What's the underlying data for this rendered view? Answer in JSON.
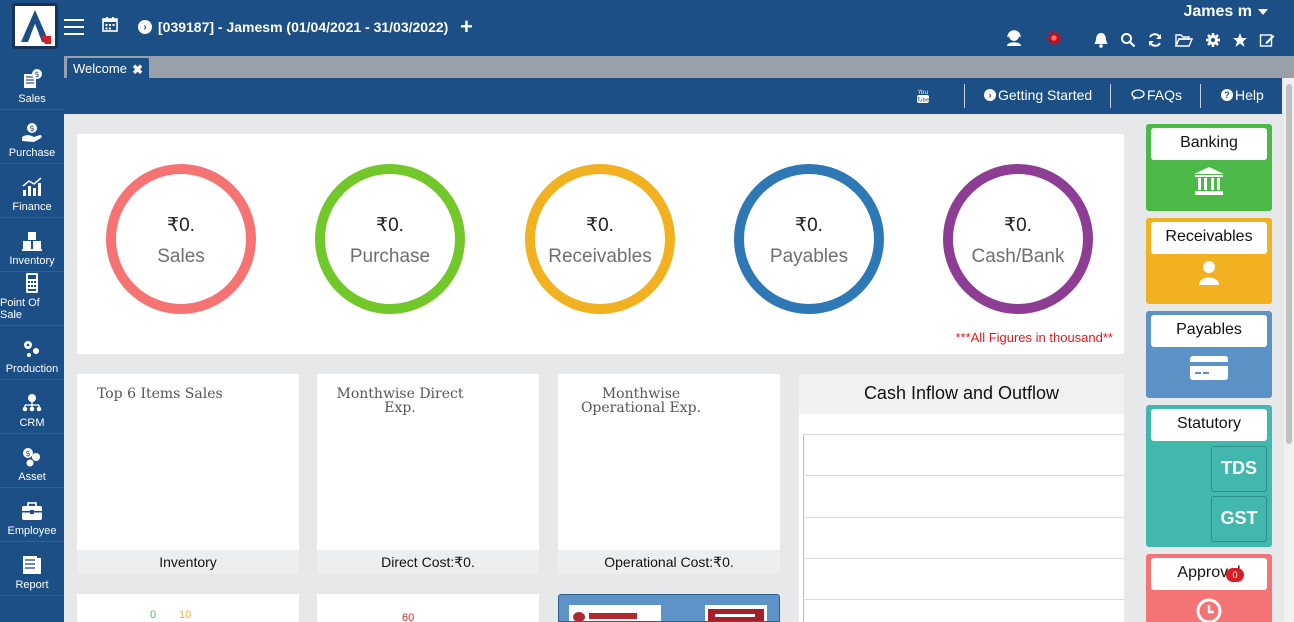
{
  "header": {
    "company": "[039187] - Jamesm (01/04/2021 - 31/03/2022)",
    "username": "James m",
    "icons": [
      "menu-icon",
      "calendar-icon",
      "circle-arrow-icon",
      "plus-icon",
      "support-agent-icon",
      "virus-icon",
      "bell-icon",
      "search-icon",
      "refresh-icon",
      "folder-icon",
      "gear-icon",
      "star-icon",
      "edit-icon"
    ]
  },
  "sidebar": {
    "items": [
      {
        "label": "Sales",
        "icon": "sales-icon"
      },
      {
        "label": "Purchase",
        "icon": "purchase-icon"
      },
      {
        "label": "Finance",
        "icon": "finance-icon"
      },
      {
        "label": "Inventory",
        "icon": "inventory-icon"
      },
      {
        "label": "Point Of Sale",
        "icon": "pos-icon"
      },
      {
        "label": "Production",
        "icon": "production-icon"
      },
      {
        "label": "CRM",
        "icon": "crm-icon"
      },
      {
        "label": "Asset",
        "icon": "asset-icon"
      },
      {
        "label": "Employee",
        "icon": "employee-icon"
      },
      {
        "label": "Report",
        "icon": "report-icon"
      }
    ]
  },
  "tabs": [
    {
      "label": "Welcome",
      "close": "✖"
    }
  ],
  "toolbar": {
    "getting_started": "Getting Started",
    "faqs": "FAQs",
    "help": "Help"
  },
  "summary": {
    "circles": [
      {
        "amount": "₹0.",
        "label": "Sales",
        "color": "#f57473"
      },
      {
        "amount": "₹0.",
        "label": "Purchase",
        "color": "#72c82a"
      },
      {
        "amount": "₹0.",
        "label": "Receivables",
        "color": "#f2b120"
      },
      {
        "amount": "₹0.",
        "label": "Payables",
        "color": "#2f78b6"
      },
      {
        "amount": "₹0.",
        "label": "Cash/Bank",
        "color": "#8e3d95"
      }
    ],
    "note": "***All Figures in thousand**"
  },
  "cards": {
    "top_items": {
      "title": "Top 6 Items Sales",
      "footer": "Inventory"
    },
    "direct_exp": {
      "title_line1": "Monthwise Direct",
      "title_line2": "Exp.",
      "footer": "Direct Cost:₹0."
    },
    "operational_exp": {
      "title_line1": "Monthwise",
      "title_line2": "Operational Exp.",
      "footer": "Operational Cost:₹0."
    },
    "cash_flow": {
      "title": "Cash Inflow and Outflow"
    }
  },
  "partial_row": {
    "gauge1": {
      "v1": "0",
      "v2": "10"
    },
    "gauge2": {
      "v1": "60"
    }
  },
  "tiles": [
    {
      "label": "Banking",
      "color": "#4cb848",
      "icon": "bank-icon"
    },
    {
      "label": "Receivables",
      "color": "#f2b120",
      "icon": "user-icon"
    },
    {
      "label": "Payables",
      "color": "#5b93c7",
      "icon": "credit-card-icon"
    },
    {
      "label": "Statutory",
      "color": "#42b7ae",
      "buttons": [
        "TDS",
        "GST"
      ]
    },
    {
      "label": "Approval",
      "color": "#f47475",
      "icon": "clock-icon",
      "badge": "0"
    }
  ]
}
